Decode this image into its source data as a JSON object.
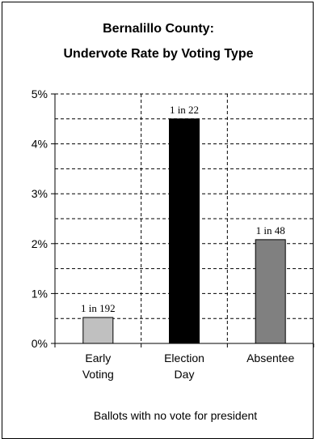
{
  "chart_data": {
    "type": "bar",
    "title_lines": [
      "Bernalillo County:",
      "Undervote Rate by Voting Type"
    ],
    "categories": [
      {
        "line1": "Early",
        "line2": "Voting"
      },
      {
        "line1": "Election",
        "line2": "Day"
      },
      {
        "line1": "Absentee",
        "line2": ""
      }
    ],
    "values": [
      0.52,
      4.5,
      2.08
    ],
    "data_labels": [
      "1 in 192",
      "1 in 22",
      "1 in 48"
    ],
    "bar_colors": [
      "#c0c0c0",
      "#000000",
      "#808080"
    ],
    "ylim": [
      0,
      5
    ],
    "yticks": [
      0,
      1,
      2,
      3,
      4,
      5
    ],
    "ytick_labels": [
      "0%",
      "1%",
      "2%",
      "3%",
      "4%",
      "5%"
    ],
    "minor_gridlines": true,
    "grid": "dashed",
    "xlabel": "",
    "ylabel": "",
    "footnote": "Ballots with no vote for president"
  }
}
